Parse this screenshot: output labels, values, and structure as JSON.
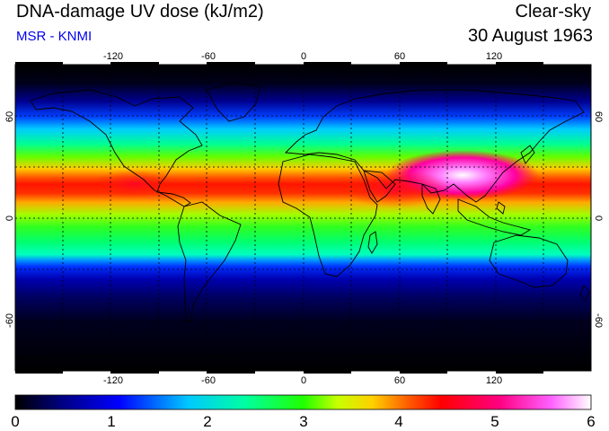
{
  "header": {
    "title": "DNA-damage UV dose (kJ/m2)",
    "subtitle": "MSR - KNMI",
    "scenario": "Clear-sky",
    "date": "30 August 1963"
  },
  "map": {
    "projection": "equirectangular",
    "lon_range": [
      -180,
      180
    ],
    "lat_range": [
      -90,
      90
    ],
    "lon_ticks": [
      "-120",
      "-60",
      "0",
      "60",
      "120"
    ],
    "lat_ticks": [
      "60",
      "0",
      "-60"
    ],
    "gridlines": "dashed every 30 degrees",
    "field": "daily erythemal DNA-damage dose, maximum over subtropics of Northern Hemisphere (Tibet/Middle East)"
  },
  "colorbar": {
    "labels": [
      "0",
      "1",
      "2",
      "3",
      "4",
      "5",
      "6"
    ],
    "range": [
      0,
      6
    ],
    "stops": [
      "#000000",
      "#000080",
      "#0000ff",
      "#00c8ff",
      "#00ffa0",
      "#20ff00",
      "#c8ff00",
      "#ffd000",
      "#ff6000",
      "#ff0000",
      "#ff0080",
      "#ff60ff",
      "#ffffff"
    ]
  }
}
